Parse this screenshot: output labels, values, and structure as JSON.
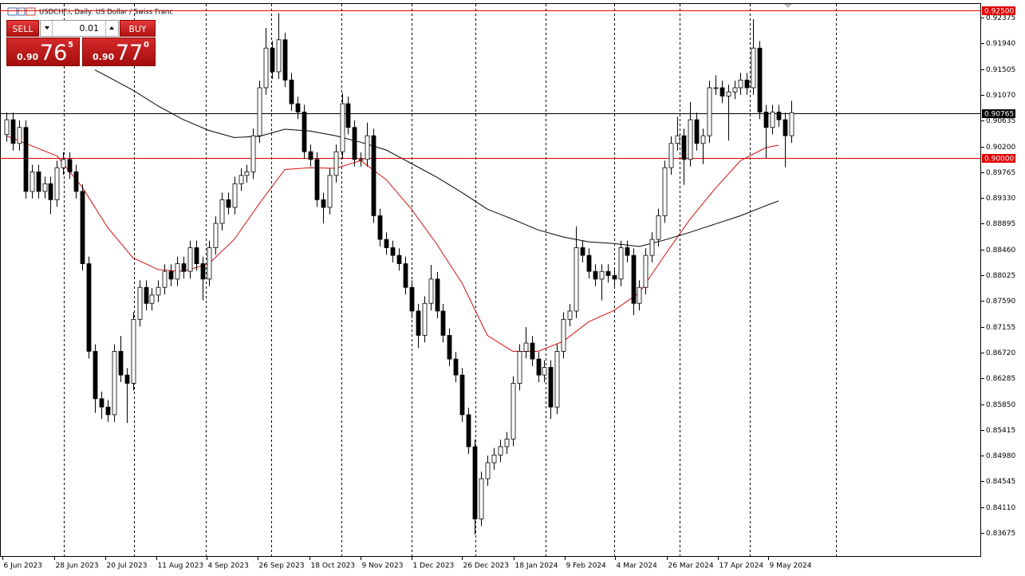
{
  "header": {
    "title": "USDCHF.i, Daily:  US Dollar / Swiss Franc"
  },
  "trade_panel": {
    "sell": "SELL",
    "buy": "BUY",
    "lot": "0.01",
    "bid": {
      "prefix": "0.90",
      "big": "76",
      "small": "5"
    },
    "ask": {
      "prefix": "0.90",
      "big": "77",
      "small": "0"
    }
  },
  "chart_data": {
    "type": "candlestick",
    "xlim": [
      -1,
      154
    ],
    "ylim": [
      0.83271,
      0.92604
    ],
    "xticks": [
      {
        "value": -0.62,
        "label": "6 Jun 2023"
      },
      {
        "value": 7.56,
        "label": "28 Jun 2023"
      },
      {
        "value": 15.6,
        "label": "20 Jul 2023"
      },
      {
        "value": 23.7,
        "label": "11 Aug 2023"
      },
      {
        "value": 31.7,
        "label": "4 Sep 2023"
      },
      {
        "value": 39.7,
        "label": "26 Sep 2023"
      },
      {
        "value": 47.9,
        "label": "18 Oct 2023"
      },
      {
        "value": 55.9,
        "label": "9 Nov 2023"
      },
      {
        "value": 64,
        "label": "1 Dec 2023"
      },
      {
        "value": 72,
        "label": "26 Dec 2023"
      },
      {
        "value": 80.1,
        "label": "18 Jan 2024"
      },
      {
        "value": 88.2,
        "label": "9 Feb 2024"
      },
      {
        "value": 96.2,
        "label": "4 Mar 2024"
      },
      {
        "value": 104.3,
        "label": "26 Mar 2024"
      },
      {
        "value": 112.4,
        "label": "17 Apr 2024"
      },
      {
        "value": 120.4,
        "label": "9 May 2024"
      }
    ],
    "yticks": [
      0.92375,
      {
        "value": 0.9194,
        "label": "0.91940"
      },
      0.91505,
      {
        "value": 0.9107,
        "label": "0.91070"
      },
      0.90635,
      {
        "value": 0.902,
        "label": "0.90200"
      },
      0.89765,
      {
        "value": 0.8933,
        "label": "0.89330"
      },
      0.88895,
      {
        "value": 0.8846,
        "label": "0.88460"
      },
      0.88025,
      {
        "value": 0.8759,
        "label": "0.87590"
      },
      0.87155,
      {
        "value": 0.8672,
        "label": "0.86720"
      },
      0.86285,
      {
        "value": 0.8585,
        "label": "0.85850"
      },
      0.85415,
      {
        "value": 0.8498,
        "label": "0.84980"
      },
      0.84545,
      {
        "value": 0.8411,
        "label": "0.84110"
      },
      0.83675
    ],
    "hlines": [
      {
        "value": 0.925,
        "label": "0.92500",
        "color": "#e00000"
      },
      {
        "value": 0.90765,
        "label": "0.90765",
        "color": "#000000"
      },
      {
        "value": 0.9,
        "label": "0.90000",
        "color": "#e00000"
      }
    ],
    "open": [
      0.904,
      0.9065,
      0.9025,
      0.9052,
      0.8944,
      0.8977,
      0.8944,
      0.8957,
      0.893,
      0.8984,
      0.8998,
      0.8977,
      0.8944,
      0.8822,
      0.8674,
      0.8594,
      0.858,
      0.8567,
      0.8674,
      0.8634,
      0.862,
      0.8728,
      0.8782,
      0.8755,
      0.8769,
      0.8782,
      0.8809,
      0.8796,
      0.8822,
      0.8809,
      0.8849,
      0.8822,
      0.8796,
      0.8849,
      0.889,
      0.893,
      0.8917,
      0.8957,
      0.8971,
      0.8977,
      0.9038,
      0.9119,
      0.9186,
      0.9146,
      0.92,
      0.9132,
      0.9092,
      0.9078,
      0.9011,
      0.8998,
      0.893,
      0.8917,
      0.8971,
      0.9011,
      0.9092,
      0.9052,
      0.8998,
      0.8998,
      0.9038,
      0.8903,
      0.8863,
      0.8849,
      0.8836,
      0.8822,
      0.8782,
      0.8742,
      0.8701,
      0.8755,
      0.8796,
      0.8742,
      0.8701,
      0.8661,
      0.8634,
      0.8567,
      0.8513,
      0.8391,
      0.8459,
      0.8486,
      0.8499,
      0.8513,
      0.8526,
      0.862,
      0.8674,
      0.8688,
      0.8661,
      0.8634,
      0.8647,
      0.858,
      0.8674,
      0.8728,
      0.8742,
      0.8849,
      0.8836,
      0.8809,
      0.8796,
      0.8809,
      0.8802,
      0.8796,
      0.8849,
      0.8836,
      0.8755,
      0.8782,
      0.8836,
      0.8863,
      0.8903,
      0.8984,
      0.9025,
      0.9038,
      0.8998,
      0.9065,
      0.9025,
      0.9038,
      0.9119,
      0.9119,
      0.9105,
      0.9112,
      0.9119,
      0.9132,
      0.9119,
      0.9186,
      0.9078,
      0.9052,
      0.9078,
      0.9065,
      0.9038
    ],
    "high": [
      0.9077,
      0.9077,
      0.9064,
      0.9064,
      0.8989,
      0.8989,
      0.8969,
      0.8969,
      0.8996,
      0.901,
      0.901,
      0.8989,
      0.8956,
      0.8834,
      0.8686,
      0.8606,
      0.8592,
      0.8686,
      0.87,
      0.8646,
      0.874,
      0.8794,
      0.8794,
      0.8781,
      0.8794,
      0.8821,
      0.8821,
      0.8834,
      0.8834,
      0.8861,
      0.8861,
      0.8834,
      0.8861,
      0.8902,
      0.8942,
      0.8942,
      0.8969,
      0.8983,
      0.8989,
      0.905,
      0.9131,
      0.922,
      0.9198,
      0.9245,
      0.9212,
      0.9144,
      0.9104,
      0.909,
      0.9023,
      0.901,
      0.8942,
      0.8983,
      0.9023,
      0.911,
      0.9104,
      0.9064,
      0.901,
      0.906,
      0.905,
      0.8915,
      0.8875,
      0.8861,
      0.8848,
      0.8834,
      0.8794,
      0.8754,
      0.8767,
      0.882,
      0.8808,
      0.8754,
      0.8713,
      0.8673,
      0.8646,
      0.8579,
      0.8525,
      0.8471,
      0.8498,
      0.8511,
      0.8525,
      0.8538,
      0.8632,
      0.8686,
      0.8715,
      0.87,
      0.8673,
      0.8659,
      0.8659,
      0.8686,
      0.874,
      0.8754,
      0.8885,
      0.8861,
      0.8848,
      0.8821,
      0.8821,
      0.8821,
      0.8814,
      0.8861,
      0.8861,
      0.8848,
      0.8794,
      0.8848,
      0.8875,
      0.8915,
      0.8996,
      0.9037,
      0.907,
      0.905,
      0.9095,
      0.9077,
      0.905,
      0.9131,
      0.914,
      0.9131,
      0.9124,
      0.9131,
      0.9144,
      0.9144,
      0.9235,
      0.9198,
      0.909,
      0.909,
      0.909,
      0.9077,
      0.9097
    ],
    "low": [
      0.9028,
      0.9013,
      0.9013,
      0.8932,
      0.8932,
      0.8932,
      0.8932,
      0.8906,
      0.8918,
      0.8972,
      0.8965,
      0.8932,
      0.881,
      0.8662,
      0.857,
      0.856,
      0.8555,
      0.8555,
      0.8622,
      0.8553,
      0.8608,
      0.8716,
      0.8743,
      0.8743,
      0.8757,
      0.877,
      0.8784,
      0.8784,
      0.8797,
      0.8797,
      0.881,
      0.876,
      0.8784,
      0.8837,
      0.8878,
      0.8905,
      0.8905,
      0.8945,
      0.8959,
      0.8965,
      0.9026,
      0.9107,
      0.9134,
      0.9134,
      0.912,
      0.908,
      0.9066,
      0.8999,
      0.8986,
      0.8918,
      0.889,
      0.8905,
      0.8959,
      0.8999,
      0.904,
      0.8986,
      0.8986,
      0.8986,
      0.8891,
      0.8851,
      0.8837,
      0.8824,
      0.881,
      0.877,
      0.873,
      0.868,
      0.8689,
      0.8743,
      0.873,
      0.8689,
      0.8649,
      0.8622,
      0.8555,
      0.8501,
      0.8365,
      0.8379,
      0.8447,
      0.8474,
      0.8487,
      0.8501,
      0.8514,
      0.8608,
      0.8662,
      0.8649,
      0.8622,
      0.8622,
      0.856,
      0.8568,
      0.8662,
      0.8716,
      0.873,
      0.8824,
      0.8797,
      0.8784,
      0.876,
      0.879,
      0.8784,
      0.8784,
      0.8824,
      0.8735,
      0.8743,
      0.877,
      0.8824,
      0.8851,
      0.8891,
      0.8972,
      0.9013,
      0.8955,
      0.8986,
      0.9013,
      0.899,
      0.9026,
      0.9107,
      0.9093,
      0.903,
      0.91,
      0.9107,
      0.9107,
      0.9107,
      0.9066,
      0.9,
      0.904,
      0.9053,
      0.8985,
      0.9026
    ],
    "close": [
      0.9065,
      0.9025,
      0.9052,
      0.8944,
      0.8977,
      0.8944,
      0.8957,
      0.893,
      0.8984,
      0.8998,
      0.8977,
      0.8944,
      0.8822,
      0.8674,
      0.8594,
      0.858,
      0.8567,
      0.8674,
      0.8634,
      0.862,
      0.8728,
      0.8782,
      0.8755,
      0.8769,
      0.8782,
      0.8809,
      0.8796,
      0.8822,
      0.8809,
      0.8849,
      0.8822,
      0.8796,
      0.8849,
      0.889,
      0.893,
      0.8917,
      0.8957,
      0.8971,
      0.8977,
      0.9038,
      0.9119,
      0.9186,
      0.9146,
      0.92,
      0.9132,
      0.9092,
      0.9078,
      0.9011,
      0.8998,
      0.893,
      0.8917,
      0.8971,
      0.9011,
      0.9092,
      0.9052,
      0.8998,
      0.8998,
      0.9038,
      0.8903,
      0.8863,
      0.8849,
      0.8836,
      0.8822,
      0.8782,
      0.8742,
      0.8701,
      0.8755,
      0.8796,
      0.8742,
      0.8701,
      0.8661,
      0.8634,
      0.8567,
      0.8513,
      0.8391,
      0.8459,
      0.8486,
      0.8499,
      0.8513,
      0.8526,
      0.862,
      0.8674,
      0.8688,
      0.8661,
      0.8634,
      0.8647,
      0.858,
      0.8674,
      0.8728,
      0.8742,
      0.8849,
      0.8836,
      0.8809,
      0.8796,
      0.8809,
      0.8802,
      0.8796,
      0.8849,
      0.8836,
      0.8755,
      0.8782,
      0.8836,
      0.8863,
      0.8903,
      0.8984,
      0.9025,
      0.9038,
      0.8998,
      0.9065,
      0.9025,
      0.9038,
      0.9119,
      0.9119,
      0.9105,
      0.9112,
      0.9119,
      0.9132,
      0.9119,
      0.9186,
      0.9078,
      0.9052,
      0.9078,
      0.9065,
      0.9038,
      0.9077
    ],
    "series": [
      {
        "color": "#d01010",
        "x": [
          0,
          4,
          8,
          12,
          16,
          20,
          24,
          28,
          32,
          36,
          40,
          44,
          48,
          52,
          56,
          60,
          64,
          68,
          72,
          76,
          80,
          84,
          88,
          92,
          96,
          100,
          104,
          108,
          112,
          116,
          120,
          122
        ],
        "values": [
          0.9038,
          0.9021,
          0.9004,
          0.8951,
          0.8883,
          0.8832,
          0.8812,
          0.8809,
          0.8822,
          0.8863,
          0.8924,
          0.8981,
          0.8984,
          0.8983,
          0.8996,
          0.8964,
          0.8914,
          0.8855,
          0.8789,
          0.8701,
          0.8674,
          0.8674,
          0.8691,
          0.8724,
          0.8743,
          0.8773,
          0.8836,
          0.8897,
          0.8949,
          0.8996,
          0.9018,
          0.9022
        ]
      },
      {
        "color": "#000000",
        "x": [
          14,
          16,
          20,
          24,
          28,
          32,
          36,
          40,
          44,
          48,
          52,
          56,
          60,
          64,
          68,
          72,
          76,
          80,
          84,
          88,
          92,
          96,
          100,
          104,
          108,
          112,
          116,
          120,
          122
        ],
        "values": [
          0.9149,
          0.9138,
          0.9115,
          0.9088,
          0.9065,
          0.9047,
          0.9035,
          0.9037,
          0.9049,
          0.9046,
          0.9038,
          0.9027,
          0.9014,
          0.8991,
          0.8968,
          0.8942,
          0.8914,
          0.8897,
          0.8879,
          0.8867,
          0.8859,
          0.8856,
          0.8851,
          0.8862,
          0.8875,
          0.8889,
          0.8903,
          0.892,
          0.8928
        ]
      }
    ]
  }
}
